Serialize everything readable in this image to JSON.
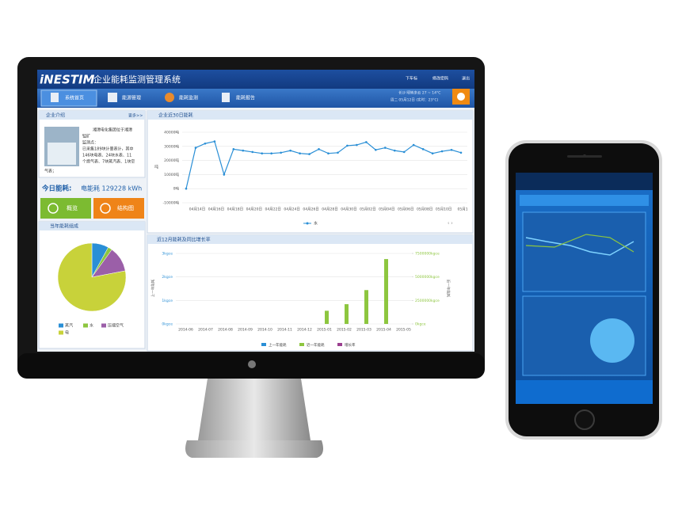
{
  "header": {
    "logo": "iNESTIM",
    "title": "企业能耗监测管理系统",
    "user": "下车标",
    "password": "修改密码",
    "logout": "退出",
    "weather": "长沙 晴转多云 27 ~ 14°C",
    "date": "周二 05月12日 (实时：23°C)"
  },
  "nav": [
    "系统首页",
    "能源管理",
    "能耗监测",
    "能耗报告"
  ],
  "company": {
    "title": "企业介绍",
    "more": "更多>>",
    "lines": [
      "湘潭电化集团位于湘潭",
      "锰矿",
      "监测点：",
      "已采集189块计量表计，其中",
      "146块电表、24块水表、11",
      "个燃气表、7块蒸汽表、1块空",
      "气表；"
    ]
  },
  "today": {
    "label": "今日能耗:",
    "value": "电能耗 129228 kWh"
  },
  "buttons": [
    "概览",
    "结构图"
  ],
  "chart_data": [
    {
      "type": "line",
      "title": "企业近30日能耗",
      "ylabel": "吨",
      "categories": [
        "04月14日",
        null,
        "04月16日",
        null,
        "04月18日",
        null,
        "04月20日",
        null,
        "04月22日",
        null,
        "04月24日",
        null,
        "04月26日",
        null,
        "04月28日",
        null,
        "04月30日",
        null,
        "05月02日",
        null,
        "05月04日",
        null,
        "05月06日",
        null,
        "05月08日",
        null,
        "05月10日",
        null,
        "05月1",
        null
      ],
      "series": [
        {
          "name": "水",
          "color": "#2a8fd6",
          "values": [
            0,
            29000,
            32000,
            33500,
            10000,
            28000,
            27000,
            26000,
            25000,
            25000,
            25500,
            27000,
            25000,
            24500,
            28000,
            25000,
            25500,
            30500,
            31000,
            33000,
            27500,
            29000,
            27000,
            26000,
            31000,
            28000,
            25000,
            26500,
            27500,
            25500
          ]
        }
      ],
      "ylim": [
        -10000,
        40000
      ],
      "yticks": [
        {
          "value": -10000,
          "label": "-10000吨"
        },
        {
          "value": 0,
          "label": "0吨"
        },
        {
          "value": 10000,
          "label": "10000吨"
        },
        {
          "value": 20000,
          "label": "20000吨"
        },
        {
          "value": 30000,
          "label": "30000吨"
        },
        {
          "value": 40000,
          "label": "40000吨"
        }
      ],
      "grid": true
    },
    {
      "type": "bar",
      "title": "近12月能耗及同比增长率",
      "ylabel": "上一年能耗",
      "y2label": "近一年能耗",
      "categories": [
        "2014-06",
        "2014-07",
        "2014-08",
        "2014-09",
        "2014-10",
        "2014-11",
        "2014-12",
        "2015-01",
        "2015-02",
        "2015-03",
        "2015-04",
        "2015-05"
      ],
      "series": [
        {
          "name": "上一年能耗",
          "color": "#2a8fd6",
          "axis": "y",
          "values": [
            0,
            0,
            0,
            0,
            0,
            0,
            0,
            0,
            0,
            0,
            0,
            0
          ]
        },
        {
          "name": "近一年能耗",
          "color": "#8dc63f",
          "axis": "y2",
          "values": [
            0,
            0,
            0,
            0,
            0,
            0,
            0,
            1400000,
            2100000,
            3600000,
            6900000,
            0
          ]
        },
        {
          "name": "增长率",
          "color": "#9b3f8f",
          "values": [
            null,
            null,
            null,
            null,
            null,
            null,
            null,
            null,
            null,
            null,
            null,
            null
          ]
        }
      ],
      "ylim": [
        0,
        3
      ],
      "yticks": [
        {
          "value": 0,
          "label": "0kgce"
        },
        {
          "value": 1,
          "label": "1kgce"
        },
        {
          "value": 2,
          "label": "2kgce"
        },
        {
          "value": 3,
          "label": "3kgce"
        }
      ],
      "y2lim": [
        0,
        7500000
      ],
      "y2ticks": [
        {
          "value": 0,
          "label": "0kgce"
        },
        {
          "value": 2500000,
          "label": "2500000kgce"
        },
        {
          "value": 5000000,
          "label": "5000000kgce"
        },
        {
          "value": 7500000,
          "label": "7500000kgce"
        }
      ],
      "grid": true
    },
    {
      "type": "pie",
      "title": "当年能耗组成",
      "categories": [
        "蒸汽",
        "水",
        "压缩空气",
        "电"
      ],
      "values": [
        8,
        2,
        12,
        78
      ],
      "colors": [
        "#2a8fd6",
        "#8dc63f",
        "#9b5fa8",
        "#c8d23a"
      ]
    }
  ]
}
